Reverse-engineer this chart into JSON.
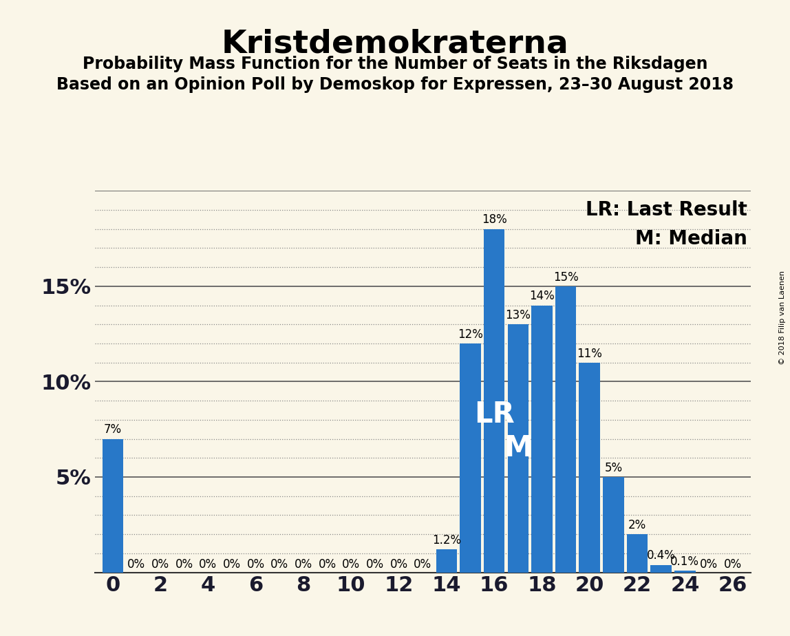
{
  "title": "Kristdemokraterna",
  "subtitle1": "Probability Mass Function for the Number of Seats in the Riksdagen",
  "subtitle2": "Based on an Opinion Poll by Demoskop for Expressen, 23–30 August 2018",
  "copyright": "© 2018 Filip van Laenen",
  "legend_lr": "LR: Last Result",
  "legend_m": "M: Median",
  "background_color": "#faf6e8",
  "bar_color": "#2878c8",
  "seats": [
    0,
    1,
    2,
    3,
    4,
    5,
    6,
    7,
    8,
    9,
    10,
    11,
    12,
    13,
    14,
    15,
    16,
    17,
    18,
    19,
    20,
    21,
    22,
    23,
    24,
    25,
    26
  ],
  "probabilities": [
    0.07,
    0.0,
    0.0,
    0.0,
    0.0,
    0.0,
    0.0,
    0.0,
    0.0,
    0.0,
    0.0,
    0.0,
    0.0,
    0.0,
    0.012,
    0.12,
    0.18,
    0.13,
    0.14,
    0.15,
    0.11,
    0.05,
    0.02,
    0.004,
    0.001,
    0.0,
    0.0
  ],
  "labels": [
    "7%",
    "0%",
    "0%",
    "0%",
    "0%",
    "0%",
    "0%",
    "0%",
    "0%",
    "0%",
    "0%",
    "0%",
    "0%",
    "0%",
    "1.2%",
    "12%",
    "18%",
    "13%",
    "14%",
    "15%",
    "11%",
    "5%",
    "2%",
    "0.4%",
    "0.1%",
    "0%",
    "0%"
  ],
  "lr_seat": 16,
  "median_seat": 17,
  "ylim": [
    0,
    0.2
  ],
  "major_yticks": [
    0.0,
    0.05,
    0.1,
    0.15,
    0.2
  ],
  "minor_ytick_step": 0.01,
  "ytick_labels": [
    "",
    "5%",
    "10%",
    "15%",
    ""
  ],
  "xticks": [
    0,
    2,
    4,
    6,
    8,
    10,
    12,
    14,
    16,
    18,
    20,
    22,
    24,
    26
  ],
  "title_fontsize": 34,
  "subtitle_fontsize": 17,
  "axis_fontsize": 22,
  "bar_label_fontsize": 12,
  "lr_m_fontsize": 30,
  "legend_fontsize": 20
}
